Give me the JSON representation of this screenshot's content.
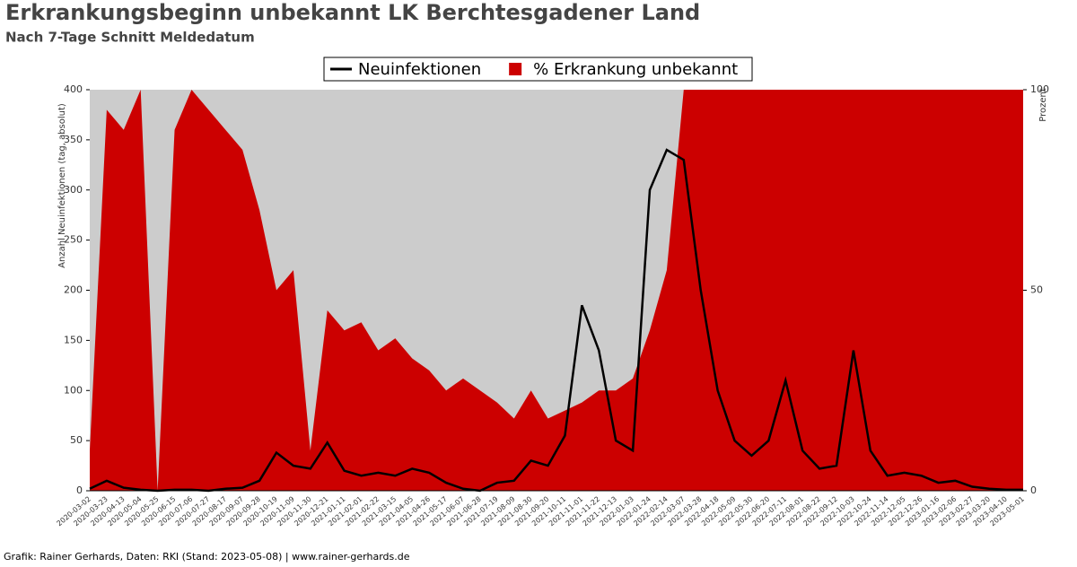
{
  "chart_data": {
    "type": "line-area",
    "title": "Erkrankungsbeginn unbekannt LK Berchtesgadener Land",
    "subtitle": "Nach 7-Tage Schnitt Meldedatum",
    "footer": "Grafik: Rainer Gerhards, Daten: RKI (Stand: 2023-05-08) | www.rainer-gerhards.de",
    "ylabel": "Anzahl Neuinfektionen (tag, absolut)",
    "y2label": "Prozent",
    "categories": [
      "2020-03-02",
      "2020-03-23",
      "2020-04-13",
      "2020-05-04",
      "2020-05-25",
      "2020-06-15",
      "2020-07-06",
      "2020-07-27",
      "2020-08-17",
      "2020-09-07",
      "2020-09-28",
      "2020-10-19",
      "2020-11-09",
      "2020-11-30",
      "2020-12-21",
      "2021-01-11",
      "2021-02-01",
      "2021-02-22",
      "2021-03-15",
      "2021-04-05",
      "2021-04-26",
      "2021-05-17",
      "2021-06-07",
      "2021-06-28",
      "2021-07-19",
      "2021-08-09",
      "2021-08-30",
      "2021-09-20",
      "2021-10-11",
      "2021-11-01",
      "2021-11-22",
      "2021-12-13",
      "2022-01-03",
      "2022-01-24",
      "2022-02-14",
      "2022-03-07",
      "2022-03-28",
      "2022-04-18",
      "2022-05-09",
      "2022-05-30",
      "2022-06-20",
      "2022-07-11",
      "2022-08-01",
      "2022-08-22",
      "2022-09-12",
      "2022-10-03",
      "2022-10-24",
      "2022-11-14",
      "2022-12-05",
      "2022-12-26",
      "2023-01-16",
      "2023-02-06",
      "2023-02-27",
      "2023-03-20",
      "2023-04-10",
      "2023-05-01"
    ],
    "series": [
      {
        "name": "% Erkrankung unbekannt",
        "color": "#cc0000",
        "axis": "y2",
        "kind": "area",
        "values": [
          10,
          95,
          90,
          100,
          0,
          90,
          100,
          95,
          90,
          85,
          70,
          50,
          55,
          10,
          45,
          40,
          42,
          35,
          38,
          33,
          30,
          25,
          28,
          25,
          22,
          18,
          25,
          18,
          20,
          22,
          25,
          25,
          28,
          40,
          55,
          100,
          100,
          100,
          100,
          100,
          100,
          100,
          100,
          100,
          100,
          100,
          100,
          100,
          100,
          100,
          100,
          100,
          100,
          100,
          100,
          100
        ]
      },
      {
        "name": "Neuinfektionen",
        "color": "#000000",
        "kind": "line",
        "values": [
          2,
          10,
          3,
          1,
          0,
          1,
          1,
          0,
          2,
          3,
          10,
          38,
          25,
          22,
          48,
          20,
          15,
          18,
          15,
          22,
          18,
          8,
          2,
          0,
          8,
          10,
          30,
          25,
          55,
          185,
          140,
          50,
          40,
          300,
          340,
          330,
          200,
          100,
          50,
          35,
          50,
          110,
          40,
          22,
          25,
          140,
          40,
          15,
          18,
          15,
          8,
          10,
          4,
          2,
          1,
          1
        ]
      }
    ],
    "ylim": [
      0,
      400
    ],
    "yticks": [
      0,
      50,
      100,
      150,
      200,
      250,
      300,
      350,
      400
    ],
    "y2lim": [
      0,
      100
    ],
    "y2ticks": [
      0,
      50,
      100
    ],
    "plot_background": "#cccccc"
  }
}
